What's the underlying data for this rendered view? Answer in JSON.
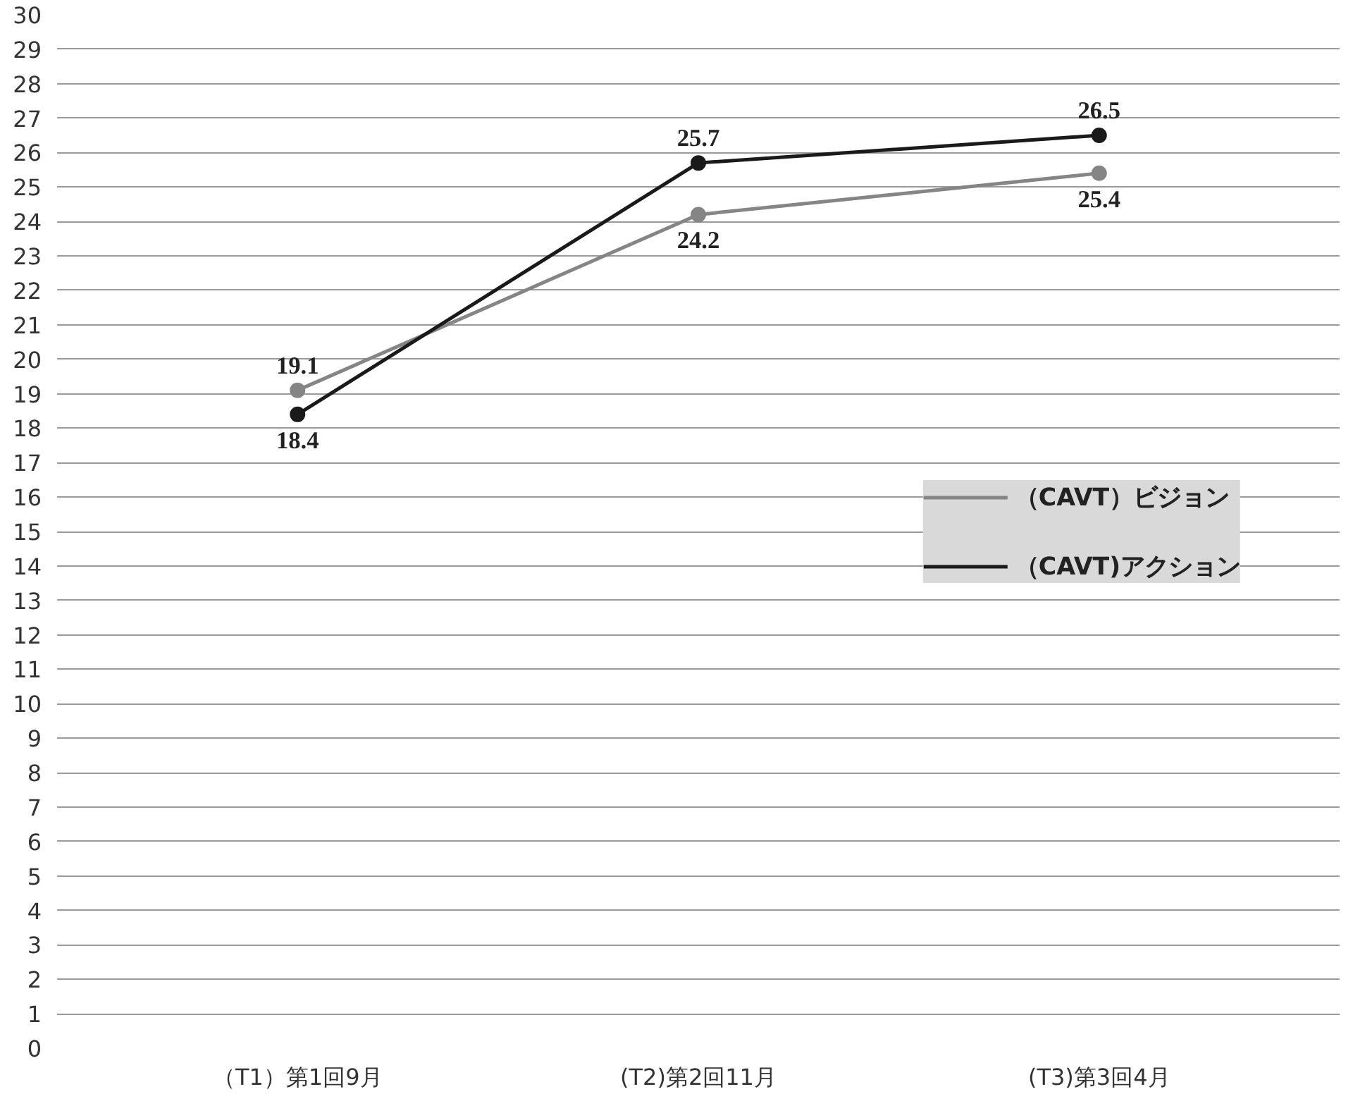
{
  "chart_data": {
    "type": "line",
    "categories": [
      "（T1）第1回9月",
      "(T2)第2回11月",
      "(T3)第3回4月"
    ],
    "series": [
      {
        "name": "（CAVT）ビジョン",
        "color": "#858585",
        "values": [
          19.1,
          24.2,
          25.4
        ]
      },
      {
        "name": "（CAVT)アクション",
        "color": "#1a1a1a",
        "values": [
          18.4,
          25.7,
          26.5
        ]
      }
    ],
    "ylim": [
      0,
      30
    ],
    "yticks": [
      0,
      1,
      2,
      3,
      4,
      5,
      6,
      7,
      8,
      9,
      10,
      11,
      12,
      13,
      14,
      15,
      16,
      17,
      18,
      19,
      20,
      21,
      22,
      23,
      24,
      25,
      26,
      27,
      28,
      29,
      30
    ],
    "grid": "y",
    "legend": "right",
    "marker": "circle",
    "line_style": "solid",
    "data_labels": true
  }
}
